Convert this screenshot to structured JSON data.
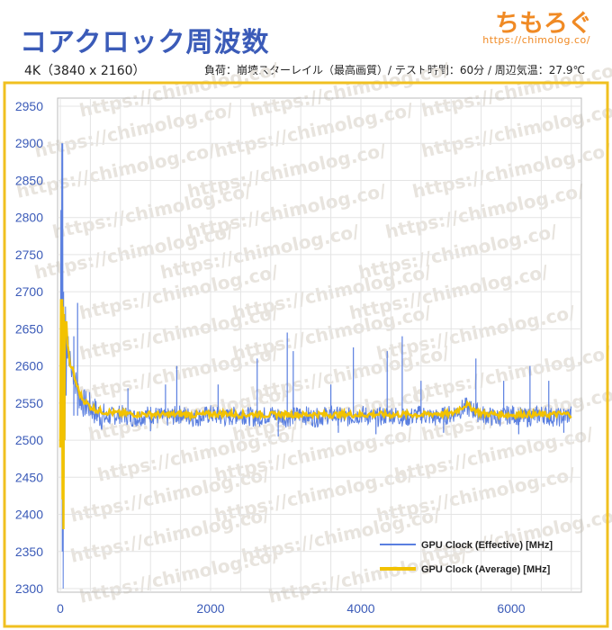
{
  "header": {
    "title": "コアクロック周波数",
    "subtitle_left": "4K（3840 x 2160）",
    "subtitle_right": "負荷：崩壊スターレイル（最高画質）/ テスト時間：60分 / 周辺気温：27.9℃",
    "logo_text": "ちもろぐ",
    "logo_url": "https://chimolog.co/"
  },
  "watermark_text": "https://chimolog.co/",
  "colors": {
    "title": "#3b5bb8",
    "axis_labels": "#3b5bb8",
    "effective": "#5a7fe0",
    "average": "#f2c200",
    "border": "#f0c020",
    "logo": "#f08a24"
  },
  "chart_data": {
    "type": "line",
    "xlim": [
      0,
      6800
    ],
    "ylim": [
      2300,
      2950
    ],
    "x_ticks": [
      0,
      2000,
      4000,
      6000
    ],
    "y_ticks": [
      2300,
      2350,
      2400,
      2450,
      2500,
      2550,
      2600,
      2650,
      2700,
      2750,
      2800,
      2850,
      2900,
      2950
    ],
    "grid": true,
    "legend_position": "bottom-right",
    "series": [
      {
        "name": "GPU Clock (Effective) [MHz]",
        "color": "#5a7fe0",
        "x": [
          0,
          20,
          40,
          60,
          80,
          100,
          120,
          150,
          200,
          250,
          300,
          400,
          500,
          600,
          800,
          1000,
          1200,
          1400,
          1600,
          1800,
          2000,
          2200,
          2400,
          2600,
          2800,
          3000,
          3200,
          3400,
          3600,
          3800,
          4000,
          4200,
          4400,
          4600,
          4800,
          5000,
          5200,
          5400,
          5600,
          5800,
          6000,
          6200,
          6400,
          6600,
          6800
        ],
        "y": [
          2500,
          2810,
          2900,
          2300,
          2660,
          2680,
          2620,
          2600,
          2580,
          2560,
          2550,
          2545,
          2535,
          2530,
          2535,
          2530,
          2535,
          2530,
          2535,
          2530,
          2535,
          2530,
          2535,
          2530,
          2535,
          2530,
          2535,
          2530,
          2535,
          2530,
          2535,
          2530,
          2535,
          2530,
          2535,
          2530,
          2535,
          2545,
          2535,
          2530,
          2535,
          2530,
          2535,
          2530,
          2535
        ]
      },
      {
        "name": "GPU Clock (Average) [MHz]",
        "color": "#f2c200",
        "x": [
          0,
          20,
          40,
          60,
          80,
          100,
          150,
          200,
          250,
          300,
          400,
          500,
          600,
          800,
          1000,
          1200,
          1400,
          1600,
          1800,
          2000,
          2200,
          2400,
          2600,
          2800,
          3000,
          3200,
          3400,
          3600,
          3800,
          4000,
          4200,
          4400,
          4600,
          4800,
          5000,
          5200,
          5400,
          5600,
          5800,
          6000,
          6200,
          6400,
          6600,
          6800
        ],
        "y": [
          2490,
          2690,
          2640,
          2410,
          2660,
          2650,
          2600,
          2580,
          2565,
          2555,
          2545,
          2540,
          2538,
          2536,
          2535,
          2535,
          2534,
          2535,
          2534,
          2535,
          2536,
          2534,
          2535,
          2534,
          2535,
          2534,
          2535,
          2534,
          2535,
          2534,
          2535,
          2534,
          2535,
          2534,
          2536,
          2535,
          2548,
          2536,
          2535,
          2534,
          2535,
          2534,
          2535,
          2535
        ]
      }
    ],
    "spikes_effective": [
      {
        "x": 1550,
        "y": 2600
      },
      {
        "x": 2620,
        "y": 2610
      },
      {
        "x": 3020,
        "y": 2645
      },
      {
        "x": 3100,
        "y": 2620
      },
      {
        "x": 3900,
        "y": 2625
      },
      {
        "x": 4350,
        "y": 2620
      },
      {
        "x": 4550,
        "y": 2640
      },
      {
        "x": 5530,
        "y": 2610
      },
      {
        "x": 6250,
        "y": 2600
      },
      {
        "x": 6500,
        "y": 2580
      },
      {
        "x": 900,
        "y": 2570
      },
      {
        "x": 1400,
        "y": 2575
      },
      {
        "x": 2100,
        "y": 2575
      },
      {
        "x": 3600,
        "y": 2575
      },
      {
        "x": 4800,
        "y": 2580
      },
      {
        "x": 5900,
        "y": 2580
      },
      {
        "x": 230,
        "y": 2685
      },
      {
        "x": 180,
        "y": 2640
      }
    ],
    "dips_effective": [
      {
        "x": 2900,
        "y": 2505
      },
      {
        "x": 3700,
        "y": 2510
      },
      {
        "x": 4200,
        "y": 2508
      },
      {
        "x": 5100,
        "y": 2510
      },
      {
        "x": 6100,
        "y": 2508
      },
      {
        "x": 6700,
        "y": 2510
      },
      {
        "x": 1200,
        "y": 2512
      }
    ]
  }
}
